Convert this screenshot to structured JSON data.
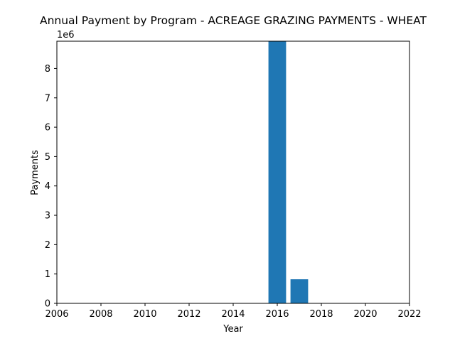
{
  "chart_data": {
    "type": "bar",
    "title": "Annual Payment by Program - ACREAGE GRAZING PAYMENTS - WHEAT",
    "xlabel": "Year",
    "ylabel": "Payments",
    "y_offset_text": "1e6",
    "x": [
      2016,
      2017
    ],
    "values": [
      8930000,
      820000
    ],
    "bar_width": 0.8,
    "xlim": [
      2006,
      2022
    ],
    "ylim": [
      0,
      8930000
    ],
    "x_ticks": [
      2006,
      2008,
      2010,
      2012,
      2014,
      2016,
      2018,
      2020,
      2022
    ],
    "x_tick_labels": [
      "2006",
      "2008",
      "2010",
      "2012",
      "2014",
      "2016",
      "2018",
      "2020",
      "2022"
    ],
    "y_ticks": [
      0,
      1000000,
      2000000,
      3000000,
      4000000,
      5000000,
      6000000,
      7000000,
      8000000
    ],
    "y_tick_labels": [
      "0",
      "1",
      "2",
      "3",
      "4",
      "5",
      "6",
      "7",
      "8"
    ],
    "bar_color": "#1f77b4",
    "grid": false,
    "legend": "none"
  }
}
